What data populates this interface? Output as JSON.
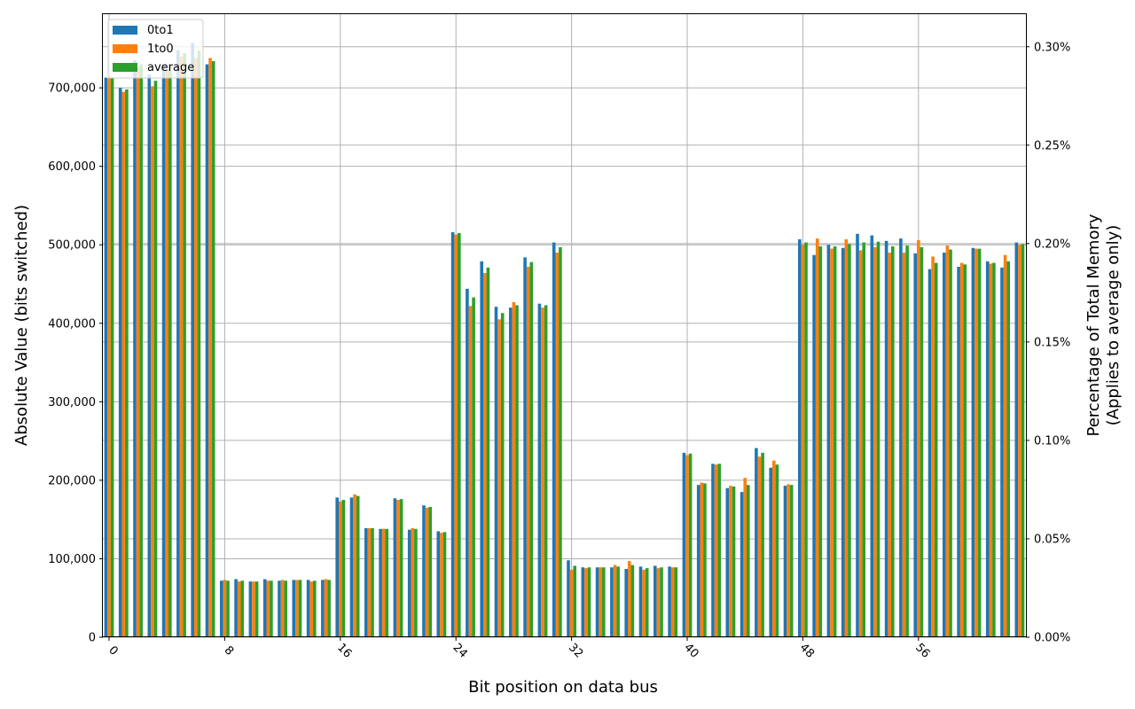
{
  "chart_data": {
    "type": "bar",
    "xlabel": "Bit position on data bus",
    "ylabel": "Absolute Value (bits switched)",
    "ylabel_right": [
      "Percentage of Total Memory",
      "(Applies to average only)"
    ],
    "ylim": [
      0,
      795000
    ],
    "yticks": [
      0,
      100000,
      200000,
      300000,
      400000,
      500000,
      600000,
      700000
    ],
    "ytick_labels": [
      "0",
      "100,000",
      "200,000",
      "300,000",
      "400,000",
      "500,000",
      "600,000",
      "700,000"
    ],
    "y2ticks": [
      0,
      0.05,
      0.1,
      0.15,
      0.2,
      0.25,
      0.3
    ],
    "y2tick_labels": [
      "0.00%",
      "0.05%",
      "0.10%",
      "0.15%",
      "0.20%",
      "0.25%",
      "0.30%"
    ],
    "y2lim": [
      0,
      0.317
    ],
    "xticks": [
      0,
      8,
      16,
      24,
      32,
      40,
      48,
      56
    ],
    "xtick_labels": [
      "0",
      "8",
      "16",
      "24",
      "32",
      "40",
      "48",
      "56"
    ],
    "grid": true,
    "legend_position": "top-left",
    "categories": [
      0,
      1,
      2,
      3,
      4,
      5,
      6,
      7,
      8,
      9,
      10,
      11,
      12,
      13,
      14,
      15,
      16,
      17,
      18,
      19,
      20,
      21,
      22,
      23,
      24,
      25,
      26,
      27,
      28,
      29,
      30,
      31,
      32,
      33,
      34,
      35,
      36,
      37,
      38,
      39,
      40,
      41,
      42,
      43,
      44,
      45,
      46,
      47,
      48,
      49,
      50,
      51,
      52,
      53,
      54,
      55,
      56,
      57,
      58,
      59,
      60,
      61,
      62,
      63
    ],
    "series": [
      {
        "name": "0to1",
        "color": "#1f77b4",
        "values": [
          713000,
          700000,
          735000,
          717000,
          730000,
          748000,
          757000,
          730000,
          72000,
          74000,
          71000,
          74000,
          72000,
          73000,
          73000,
          73000,
          178000,
          178000,
          139000,
          138000,
          177000,
          137000,
          168000,
          135000,
          516000,
          444000,
          479000,
          421000,
          420000,
          484000,
          425000,
          503000,
          98000,
          89000,
          89000,
          89000,
          87000,
          90000,
          91000,
          90000,
          235000,
          194000,
          221000,
          190000,
          185000,
          241000,
          216000,
          193000,
          507000,
          487000,
          500000,
          496000,
          514000,
          512000,
          505000,
          508000,
          489000,
          469000,
          490000,
          472000,
          496000,
          479000,
          471000,
          503000
        ]
      },
      {
        "name": "1to0",
        "color": "#ff7f0e",
        "values": [
          712000,
          695000,
          726000,
          702000,
          722000,
          740000,
          738000,
          738000,
          73000,
          71000,
          71000,
          72000,
          73000,
          73000,
          71000,
          74000,
          173000,
          182000,
          139000,
          138000,
          175000,
          139000,
          165000,
          133000,
          513000,
          422000,
          464000,
          405000,
          427000,
          472000,
          420000,
          490000,
          86000,
          88000,
          89000,
          92000,
          97000,
          86000,
          88000,
          89000,
          232000,
          197000,
          220000,
          193000,
          203000,
          230000,
          225000,
          195000,
          500000,
          508000,
          495000,
          507000,
          493000,
          497000,
          490000,
          490000,
          506000,
          485000,
          499000,
          477000,
          495000,
          476000,
          487000,
          500000
        ]
      },
      {
        "name": "average",
        "color": "#2ca02c",
        "values": [
          712000,
          698000,
          730000,
          709000,
          726000,
          744000,
          747000,
          734000,
          72000,
          72000,
          71000,
          72000,
          72000,
          73000,
          72000,
          73000,
          175000,
          180000,
          139000,
          138000,
          176000,
          138000,
          166000,
          134000,
          515000,
          433000,
          471000,
          413000,
          423000,
          478000,
          423000,
          497000,
          91000,
          89000,
          89000,
          90000,
          92000,
          88000,
          89000,
          89000,
          234000,
          196000,
          221000,
          192000,
          194000,
          235000,
          220000,
          194000,
          503000,
          498000,
          498000,
          501000,
          503000,
          504000,
          498000,
          499000,
          497000,
          477000,
          494000,
          475000,
          495000,
          477000,
          479000,
          501000
        ]
      }
    ]
  }
}
